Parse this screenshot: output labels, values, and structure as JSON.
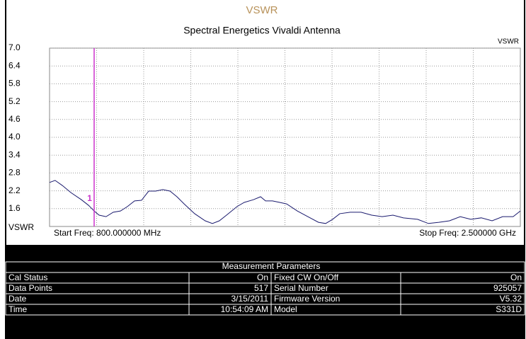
{
  "chart_data": {
    "type": "line",
    "title": "VSWR",
    "subtitle": "Spectral Energetics Vivaldi Antenna",
    "y_label": "VSWR",
    "start_label": "Start Freq: 800.000000 MHz",
    "stop_label": "Stop Freq: 2.500000 GHz",
    "xlim": [
      800,
      2500
    ],
    "ylim": [
      1.0,
      7.0
    ],
    "yticks": [
      {
        "value": 1.6,
        "label": "1.6"
      },
      2.2,
      2.8,
      3.4,
      {
        "value": 4.0,
        "label": "4.0"
      },
      4.6,
      5.2,
      5.8,
      6.4,
      {
        "value": 7.0,
        "label": "7.0"
      }
    ],
    "grid": true,
    "marker": {
      "label": "1",
      "x": 961,
      "color": "#cc33cc"
    },
    "x": [
      800,
      820,
      846,
      877,
      915,
      941,
      961,
      979,
      1004,
      1030,
      1056,
      1081,
      1107,
      1132,
      1158,
      1183,
      1209,
      1235,
      1260,
      1286,
      1324,
      1362,
      1388,
      1413,
      1439,
      1477,
      1503,
      1536,
      1562,
      1580,
      1605,
      1631,
      1656,
      1695,
      1733,
      1771,
      1797,
      1822,
      1848,
      1886,
      1925,
      1963,
      2001,
      2040,
      2078,
      2129,
      2168,
      2206,
      2244,
      2283,
      2321,
      2359,
      2398,
      2436,
      2474,
      2500
    ],
    "series": [
      {
        "name": "VSWR",
        "color": "#1a1a6e",
        "values": [
          2.48,
          2.55,
          2.38,
          2.14,
          1.9,
          1.71,
          1.52,
          1.38,
          1.33,
          1.48,
          1.52,
          1.67,
          1.86,
          1.88,
          2.19,
          2.19,
          2.24,
          2.19,
          2.0,
          1.76,
          1.43,
          1.19,
          1.1,
          1.19,
          1.38,
          1.67,
          1.81,
          1.9,
          2.0,
          1.86,
          1.86,
          1.81,
          1.76,
          1.52,
          1.33,
          1.14,
          1.1,
          1.24,
          1.43,
          1.48,
          1.48,
          1.38,
          1.33,
          1.38,
          1.29,
          1.24,
          1.1,
          1.14,
          1.19,
          1.33,
          1.24,
          1.29,
          1.19,
          1.33,
          1.33,
          1.52
        ]
      }
    ]
  },
  "table": {
    "title": "Measurement Parameters",
    "rows": [
      [
        "Cal Status",
        "On",
        "Fixed CW On/Off",
        "On"
      ],
      [
        "Data Points",
        "517",
        "Serial Number",
        "925057"
      ],
      [
        "Date",
        "3/15/2011",
        "Firmware Version",
        "V5.32"
      ],
      [
        "Time",
        "10:54:09 AM",
        "Model",
        "S331D"
      ]
    ]
  }
}
